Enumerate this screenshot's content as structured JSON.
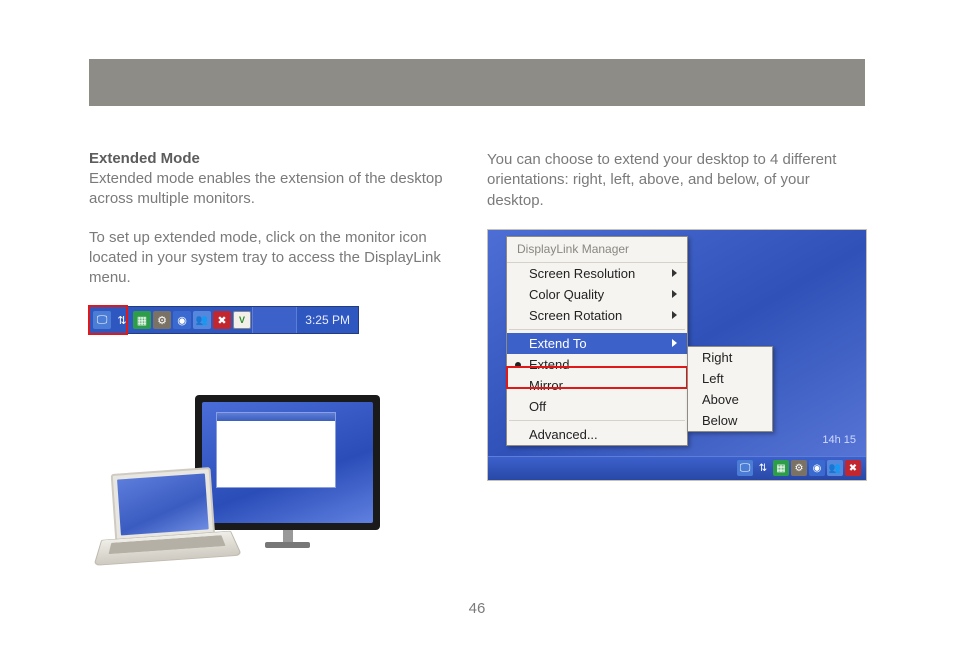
{
  "colors": {
    "header_bar": "#8d8c87",
    "body_text": "#7a7a7a",
    "title_text": "#5c5c5c",
    "xp_blue": "#3c61c8",
    "xp_blue_dark": "#2f57c0",
    "red_highlight": "#e01818",
    "menu_bg": "#f5f4f0",
    "menu_border": "#8e8b82",
    "menu_header_text": "#8a8780"
  },
  "leftColumn": {
    "title": "Extended Mode",
    "para1": "Extended mode enables the extension of the desktop across multiple monitors.",
    "para2": "To set up extended mode, click on the monitor icon located in your system tray to access the DisplayLink menu."
  },
  "rightColumn": {
    "para1": "You can choose to extend your desktop to 4 different orientations: right, left, above, and below, of your desktop."
  },
  "taskbar": {
    "clock": "3:25 PM",
    "icons": [
      "monitor-icon",
      "updown-icon",
      "display-icon",
      "gear-icon",
      "blue-icon",
      "people-icon",
      "shield-icon",
      "app-icon"
    ]
  },
  "contextMenu": {
    "header": "DisplayLink Manager",
    "items": [
      {
        "label": "Screen Resolution",
        "hasSubmenu": true
      },
      {
        "label": "Color Quality",
        "hasSubmenu": true
      },
      {
        "label": "Screen Rotation",
        "hasSubmenu": true
      }
    ],
    "extendTo": "Extend To",
    "extend": "Extend",
    "mirror": "Mirror",
    "off": "Off",
    "advanced": "Advanced...",
    "sub": {
      "right": "Right",
      "left": "Left",
      "above": "Above",
      "below": "Below"
    },
    "desktopClock": "14h     15"
  },
  "pageNumber": "46"
}
